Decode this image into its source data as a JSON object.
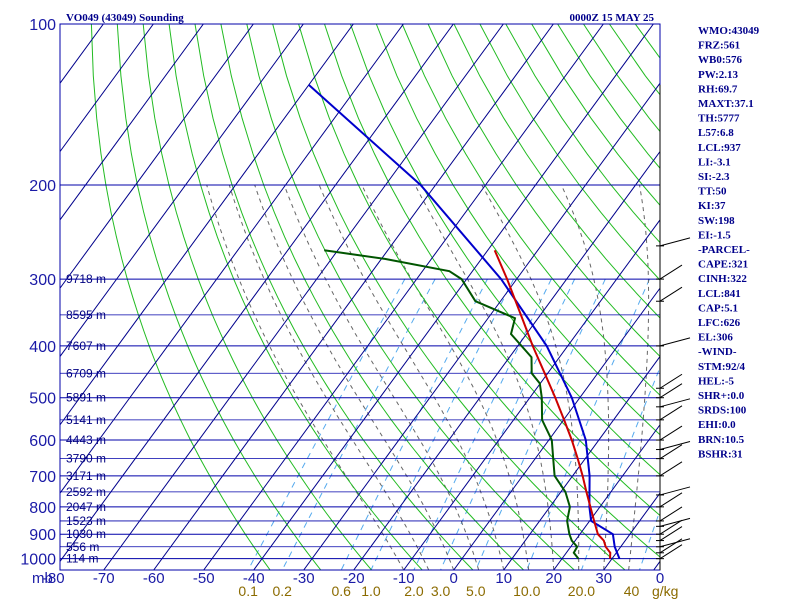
{
  "header": {
    "station": "VO049 (43049) Sounding",
    "time": "0000Z 15 MAY 25"
  },
  "indices": [
    "WMO:43049",
    "FRZ:561",
    "WB0:576",
    "PW:2.13",
    "RH:69.7",
    "MAXT:37.1",
    "TH:5777",
    "L57:6.8",
    "LCL:937",
    "LI:-3.1",
    "SI:-2.3",
    "TT:50",
    "KI:37",
    "SW:198",
    "EI:-1.5",
    "-PARCEL-",
    "CAPE:321",
    "CINH:322",
    "LCL:841",
    "CAP:5.1",
    "LFC:626",
    "EL:306",
    "-WIND-",
    "STM:92/4",
    "HEL:-5",
    "SHR+:0.0",
    "SRDS:100",
    "EHI:0.0",
    "BRN:10.5",
    "BSHR:31"
  ],
  "colors": {
    "isobar": "#0000aa",
    "isotherm": "#00008b",
    "dry_adiabat": "#22bb22",
    "moist_adiabat": "#666666",
    "mixing_ratio": "#55aaee",
    "temperature": "#cc0000",
    "dewpoint": "#005500",
    "parcel": "#0000cc"
  },
  "chart_data": {
    "type": "line",
    "chart_kind": "skew-T log-P sounding",
    "pressure_ticks": [
      100,
      200,
      300,
      400,
      500,
      600,
      700,
      800,
      900,
      1000
    ],
    "pressure_unit_label": "mb",
    "temperature_ticks": [
      "-80",
      "-70",
      "-60",
      "-50",
      "-40",
      "-30",
      "-20",
      "-10",
      "0",
      "10",
      "20",
      "30"
    ],
    "mixing_ratio_labels": [
      "0.1",
      "0.2",
      "0.6",
      "1.0",
      "2.0",
      "3.0",
      "5.0",
      "10.0",
      "20.0",
      "40"
    ],
    "mixing_ratio_unit": "g/kg",
    "wind_axis_label": "0",
    "height_labels": [
      {
        "p": 300,
        "text": "9718 m"
      },
      {
        "p": 350,
        "text": "8595 m"
      },
      {
        "p": 400,
        "text": "7607 m"
      },
      {
        "p": 450,
        "text": "6709 m"
      },
      {
        "p": 500,
        "text": "5891 m"
      },
      {
        "p": 550,
        "text": "5141 m"
      },
      {
        "p": 600,
        "text": "4443 m"
      },
      {
        "p": 650,
        "text": "3790 m"
      },
      {
        "p": 700,
        "text": "3171 m"
      },
      {
        "p": 750,
        "text": "2592 m"
      },
      {
        "p": 800,
        "text": "2047 m"
      },
      {
        "p": 850,
        "text": "1523 m"
      },
      {
        "p": 900,
        "text": "1030 m"
      },
      {
        "p": 950,
        "text": "556 m"
      },
      {
        "p": 1000,
        "text": "114 m"
      }
    ],
    "temperature": [
      [
        1000,
        29.6
      ],
      [
        975,
        28.8
      ],
      [
        950,
        27.0
      ],
      [
        925,
        25.7
      ],
      [
        900,
        23.6
      ],
      [
        850,
        20.9
      ],
      [
        800,
        18.1
      ],
      [
        750,
        15.1
      ],
      [
        700,
        12.0
      ],
      [
        650,
        8.5
      ],
      [
        600,
        4.6
      ],
      [
        550,
        0.1
      ],
      [
        500,
        -4.9
      ],
      [
        450,
        -10.6
      ],
      [
        400,
        -17.0
      ],
      [
        350,
        -23.9
      ],
      [
        300,
        -31.9
      ],
      [
        265,
        -38.6
      ]
    ],
    "dewpoint": [
      [
        1000,
        23.3
      ],
      [
        975,
        21.5
      ],
      [
        950,
        21.3
      ],
      [
        925,
        19.3
      ],
      [
        900,
        17.9
      ],
      [
        850,
        15.5
      ],
      [
        800,
        14.0
      ],
      [
        750,
        10.9
      ],
      [
        700,
        6.4
      ],
      [
        650,
        3.6
      ],
      [
        600,
        0.6
      ],
      [
        550,
        -4.3
      ],
      [
        500,
        -7.6
      ],
      [
        470,
        -10.1
      ],
      [
        450,
        -13.2
      ],
      [
        420,
        -15.6
      ],
      [
        380,
        -23.1
      ],
      [
        355,
        -24.6
      ],
      [
        330,
        -35.0
      ],
      [
        300,
        -41.0
      ],
      [
        290,
        -44.6
      ],
      [
        275,
        -59.3
      ],
      [
        265,
        -72.7
      ]
    ],
    "parcel": [
      [
        1000,
        31.5
      ],
      [
        950,
        28.8
      ],
      [
        900,
        26.6
      ],
      [
        850,
        20.3
      ],
      [
        800,
        17.9
      ],
      [
        700,
        13.4
      ],
      [
        600,
        7.4
      ],
      [
        500,
        -1.6
      ],
      [
        400,
        -14.2
      ],
      [
        300,
        -33.1
      ],
      [
        200,
        -63.0
      ],
      [
        130,
        -100.0
      ]
    ]
  }
}
